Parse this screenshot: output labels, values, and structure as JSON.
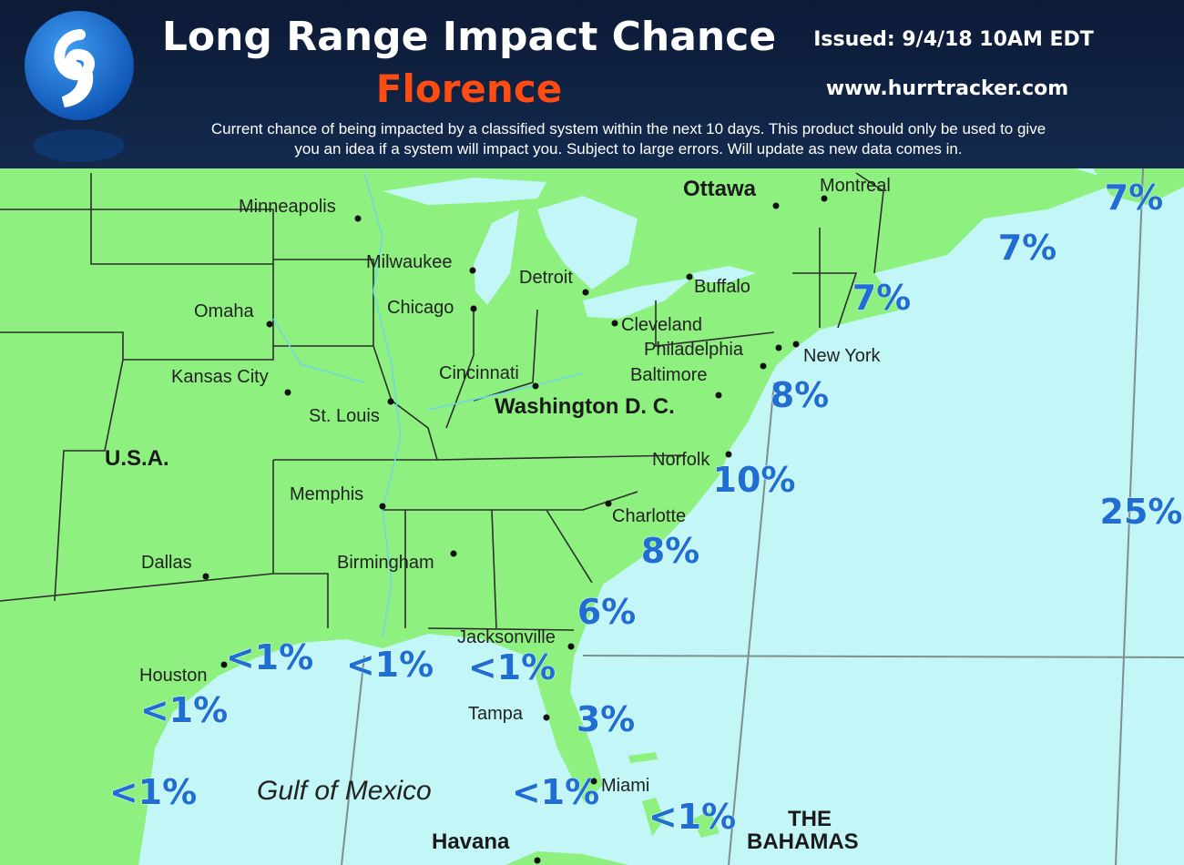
{
  "header": {
    "title": "Long Range Impact Chance",
    "storm": "Florence",
    "issued": "Issued: 9/4/18 10AM EDT",
    "website": "www.hurrtracker.com",
    "description": [
      "Current chance of being impacted by a classified system within the next 10 days. This product should only be used to give",
      "you an idea if a system will impact you. Subject to large errors. Will update as new data comes in."
    ]
  },
  "places": [
    "Ottawa",
    "Montreal",
    "Minneapolis",
    "Milwaukee",
    "Detroit",
    "Buffalo",
    "Omaha",
    "Chicago",
    "Cleveland",
    "Philadelphia",
    "New York",
    "Kansas City",
    "Cincinnati",
    "Baltimore",
    "Washington D. C.",
    "St. Louis",
    "U.S.A.",
    "Norfolk",
    "Memphis",
    "Charlotte",
    "Dallas",
    "Birmingham",
    "Jacksonville",
    "Houston",
    "Tampa",
    "Miami",
    "Gulf of Mexico",
    "Havana",
    "THE",
    "BAHAMAS"
  ],
  "chances": [
    "7%",
    "7%",
    "7%",
    "8%",
    "10%",
    "25%",
    "8%",
    "6%",
    "<1%",
    "<1%",
    "<1%",
    "3%",
    "<1%",
    "<1%",
    "<1%",
    "<1%"
  ]
}
